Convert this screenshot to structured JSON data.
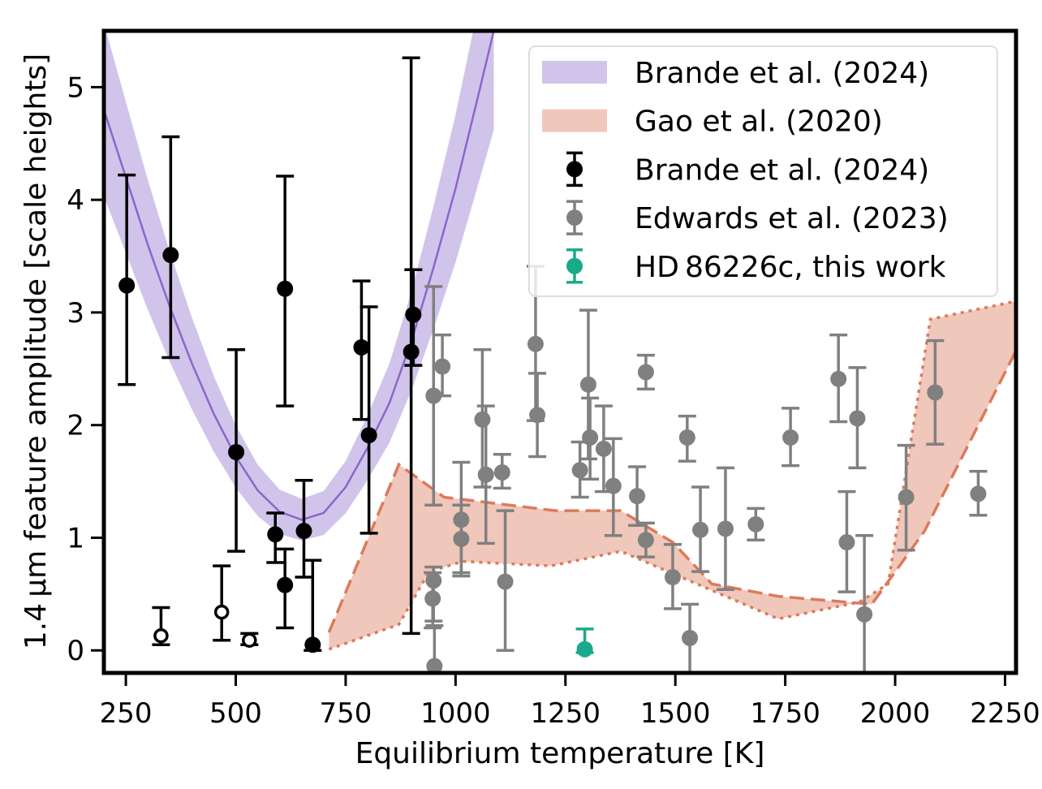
{
  "chart_data": {
    "type": "scatter",
    "xlabel": "Equilibrium temperature [K]",
    "ylabel": "1.4 μm feature amplitude [scale heights]",
    "xlim": [
      200,
      2275
    ],
    "ylim": [
      -0.2,
      5.5
    ],
    "xticks": [
      250,
      500,
      750,
      1000,
      1250,
      1500,
      1750,
      2000,
      2250
    ],
    "yticks": [
      0,
      1,
      2,
      3,
      4,
      5
    ],
    "grid": false,
    "legend_position": "top-right",
    "legend": [
      {
        "label": "Brande et al. (2024)",
        "kind": "band",
        "color": "#d1c4ea"
      },
      {
        "label": "Gao et al. (2020)",
        "kind": "band",
        "color": "#f0c7bb"
      },
      {
        "label": "Brande et al. (2024)",
        "kind": "errorbar",
        "color": "#000000"
      },
      {
        "label": "Edwards et al. (2023)",
        "kind": "errorbar",
        "color": "#808080"
      },
      {
        "label": "HD 86226c, this work",
        "kind": "errorbar",
        "color": "#1aaa8a"
      }
    ],
    "brande_model": {
      "color_band": "#d1c4ea",
      "color_line": "#8b66c9",
      "T": [
        200,
        250,
        300,
        350,
        400,
        450,
        500,
        550,
        600,
        650,
        700,
        750,
        800,
        850,
        900,
        950,
        1000,
        1050,
        1087
      ],
      "center": [
        4.8,
        4.2,
        3.6,
        3.05,
        2.55,
        2.1,
        1.72,
        1.42,
        1.23,
        1.16,
        1.22,
        1.45,
        1.8,
        2.2,
        2.75,
        3.4,
        4.1,
        4.9,
        5.5
      ],
      "rel_width": 0.16
    },
    "gao_model": {
      "color_fill": "#f0c7bb",
      "color_line": "#dc7a5b",
      "upper": {
        "T": [
          712,
          871,
          974,
          1228,
          1376,
          1494,
          1583,
          1734,
          1947,
          2067,
          2275
        ],
        "y": [
          0.16,
          1.65,
          1.36,
          1.24,
          1.24,
          0.96,
          0.59,
          0.48,
          0.41,
          1.06,
          2.66
        ]
      },
      "lower": {
        "T": [
          712,
          871,
          940,
          1017,
          1217,
          1376,
          1734,
          1919,
          1984,
          2080,
          2275
        ],
        "y": [
          0.01,
          0.23,
          0.7,
          0.79,
          0.75,
          0.88,
          0.28,
          0.43,
          0.59,
          2.94,
          3.1
        ]
      }
    },
    "series": [
      {
        "name": "Brande et al. (2024)",
        "color": "#000000",
        "points": [
          {
            "x": 252,
            "y": 3.24,
            "lo": 2.36,
            "hi": 4.22
          },
          {
            "x": 352,
            "y": 3.51,
            "lo": 2.6,
            "hi": 4.56
          },
          {
            "x": 501,
            "y": 1.76,
            "lo": 0.88,
            "hi": 2.67
          },
          {
            "x": 590,
            "y": 1.03,
            "lo": 0.78,
            "hi": 1.22
          },
          {
            "x": 612,
            "y": 3.21,
            "lo": 2.17,
            "hi": 4.21
          },
          {
            "x": 612,
            "y": 0.58,
            "lo": 0.2,
            "hi": 0.9
          },
          {
            "x": 655,
            "y": 1.06,
            "lo": 0.65,
            "hi": 1.51
          },
          {
            "x": 675,
            "y": 0.05,
            "lo": 0.0,
            "hi": 0.8
          },
          {
            "x": 786,
            "y": 2.69,
            "lo": 2.05,
            "hi": 3.28
          },
          {
            "x": 803,
            "y": 1.91,
            "lo": 1.04,
            "hi": 3.05
          },
          {
            "x": 899,
            "y": 2.65,
            "lo": 0.15,
            "hi": 5.26
          },
          {
            "x": 904,
            "y": 2.98,
            "lo": 2.53,
            "hi": 3.38
          }
        ]
      },
      {
        "name": "Brande et al. (2024) open",
        "color": "#000000",
        "open": true,
        "points": [
          {
            "x": 330,
            "y": 0.13,
            "lo": 0.05,
            "hi": 0.38
          },
          {
            "x": 468,
            "y": 0.34,
            "lo": 0.09,
            "hi": 0.75
          },
          {
            "x": 531,
            "y": 0.09,
            "lo": 0.05,
            "hi": 0.15
          }
        ]
      },
      {
        "name": "Edwards et al. (2023)",
        "color": "#808080",
        "points": [
          {
            "x": 950,
            "y": 2.26,
            "lo": 1.29,
            "hi": 3.23
          },
          {
            "x": 970,
            "y": 2.52,
            "lo": 2.26,
            "hi": 2.8
          },
          {
            "x": 950,
            "y": 0.62,
            "lo": 0.26,
            "hi": 0.74
          },
          {
            "x": 948,
            "y": 0.46,
            "lo": 0.2,
            "hi": 0.69
          },
          {
            "x": 952,
            "y": -0.14,
            "lo": -0.2,
            "hi": 0.22
          },
          {
            "x": 1013,
            "y": 1.16,
            "lo": 0.66,
            "hi": 1.67
          },
          {
            "x": 1013,
            "y": 0.99,
            "lo": 0.69,
            "hi": 1.29
          },
          {
            "x": 1061,
            "y": 2.05,
            "lo": 1.45,
            "hi": 2.67
          },
          {
            "x": 1069,
            "y": 1.56,
            "lo": 0.95,
            "hi": 2.17
          },
          {
            "x": 1106,
            "y": 1.58,
            "lo": 1.44,
            "hi": 1.74
          },
          {
            "x": 1113,
            "y": 0.61,
            "lo": 0.0,
            "hi": 1.24
          },
          {
            "x": 1182,
            "y": 2.72,
            "lo": 2.04,
            "hi": 3.41
          },
          {
            "x": 1186,
            "y": 2.09,
            "lo": 1.72,
            "hi": 2.46
          },
          {
            "x": 1283,
            "y": 1.6,
            "lo": 1.36,
            "hi": 1.85
          },
          {
            "x": 1302,
            "y": 2.36,
            "lo": 1.7,
            "hi": 3.02
          },
          {
            "x": 1306,
            "y": 1.89,
            "lo": 1.52,
            "hi": 2.24
          },
          {
            "x": 1337,
            "y": 1.79,
            "lo": 1.41,
            "hi": 2.17
          },
          {
            "x": 1359,
            "y": 1.46,
            "lo": 1.02,
            "hi": 1.88
          },
          {
            "x": 1413,
            "y": 1.37,
            "lo": 1.11,
            "hi": 1.63
          },
          {
            "x": 1433,
            "y": 2.47,
            "lo": 2.32,
            "hi": 2.62
          },
          {
            "x": 1433,
            "y": 0.98,
            "lo": 0.83,
            "hi": 1.13
          },
          {
            "x": 1494,
            "y": 0.65,
            "lo": 0.37,
            "hi": 0.94
          },
          {
            "x": 1527,
            "y": 1.89,
            "lo": 1.68,
            "hi": 2.08
          },
          {
            "x": 1533,
            "y": 0.11,
            "lo": -0.2,
            "hi": 0.41
          },
          {
            "x": 1557,
            "y": 1.07,
            "lo": 0.7,
            "hi": 1.45
          },
          {
            "x": 1614,
            "y": 1.08,
            "lo": 0.54,
            "hi": 1.62
          },
          {
            "x": 1683,
            "y": 1.12,
            "lo": 0.98,
            "hi": 1.26
          },
          {
            "x": 1762,
            "y": 1.89,
            "lo": 1.64,
            "hi": 2.15
          },
          {
            "x": 1871,
            "y": 2.41,
            "lo": 2.03,
            "hi": 2.8
          },
          {
            "x": 1890,
            "y": 0.96,
            "lo": 0.52,
            "hi": 1.41
          },
          {
            "x": 1914,
            "y": 2.06,
            "lo": 1.62,
            "hi": 2.51
          },
          {
            "x": 1930,
            "y": 0.32,
            "lo": -0.2,
            "hi": 1.02
          },
          {
            "x": 2025,
            "y": 1.36,
            "lo": 0.89,
            "hi": 1.82
          },
          {
            "x": 2091,
            "y": 2.29,
            "lo": 1.83,
            "hi": 2.75
          },
          {
            "x": 2189,
            "y": 1.39,
            "lo": 1.2,
            "hi": 1.59
          }
        ]
      },
      {
        "name": "HD 86226c, this work",
        "color": "#1aaa8a",
        "points": [
          {
            "x": 1294,
            "y": 0.01,
            "lo": -0.02,
            "hi": 0.19
          }
        ]
      }
    ]
  }
}
